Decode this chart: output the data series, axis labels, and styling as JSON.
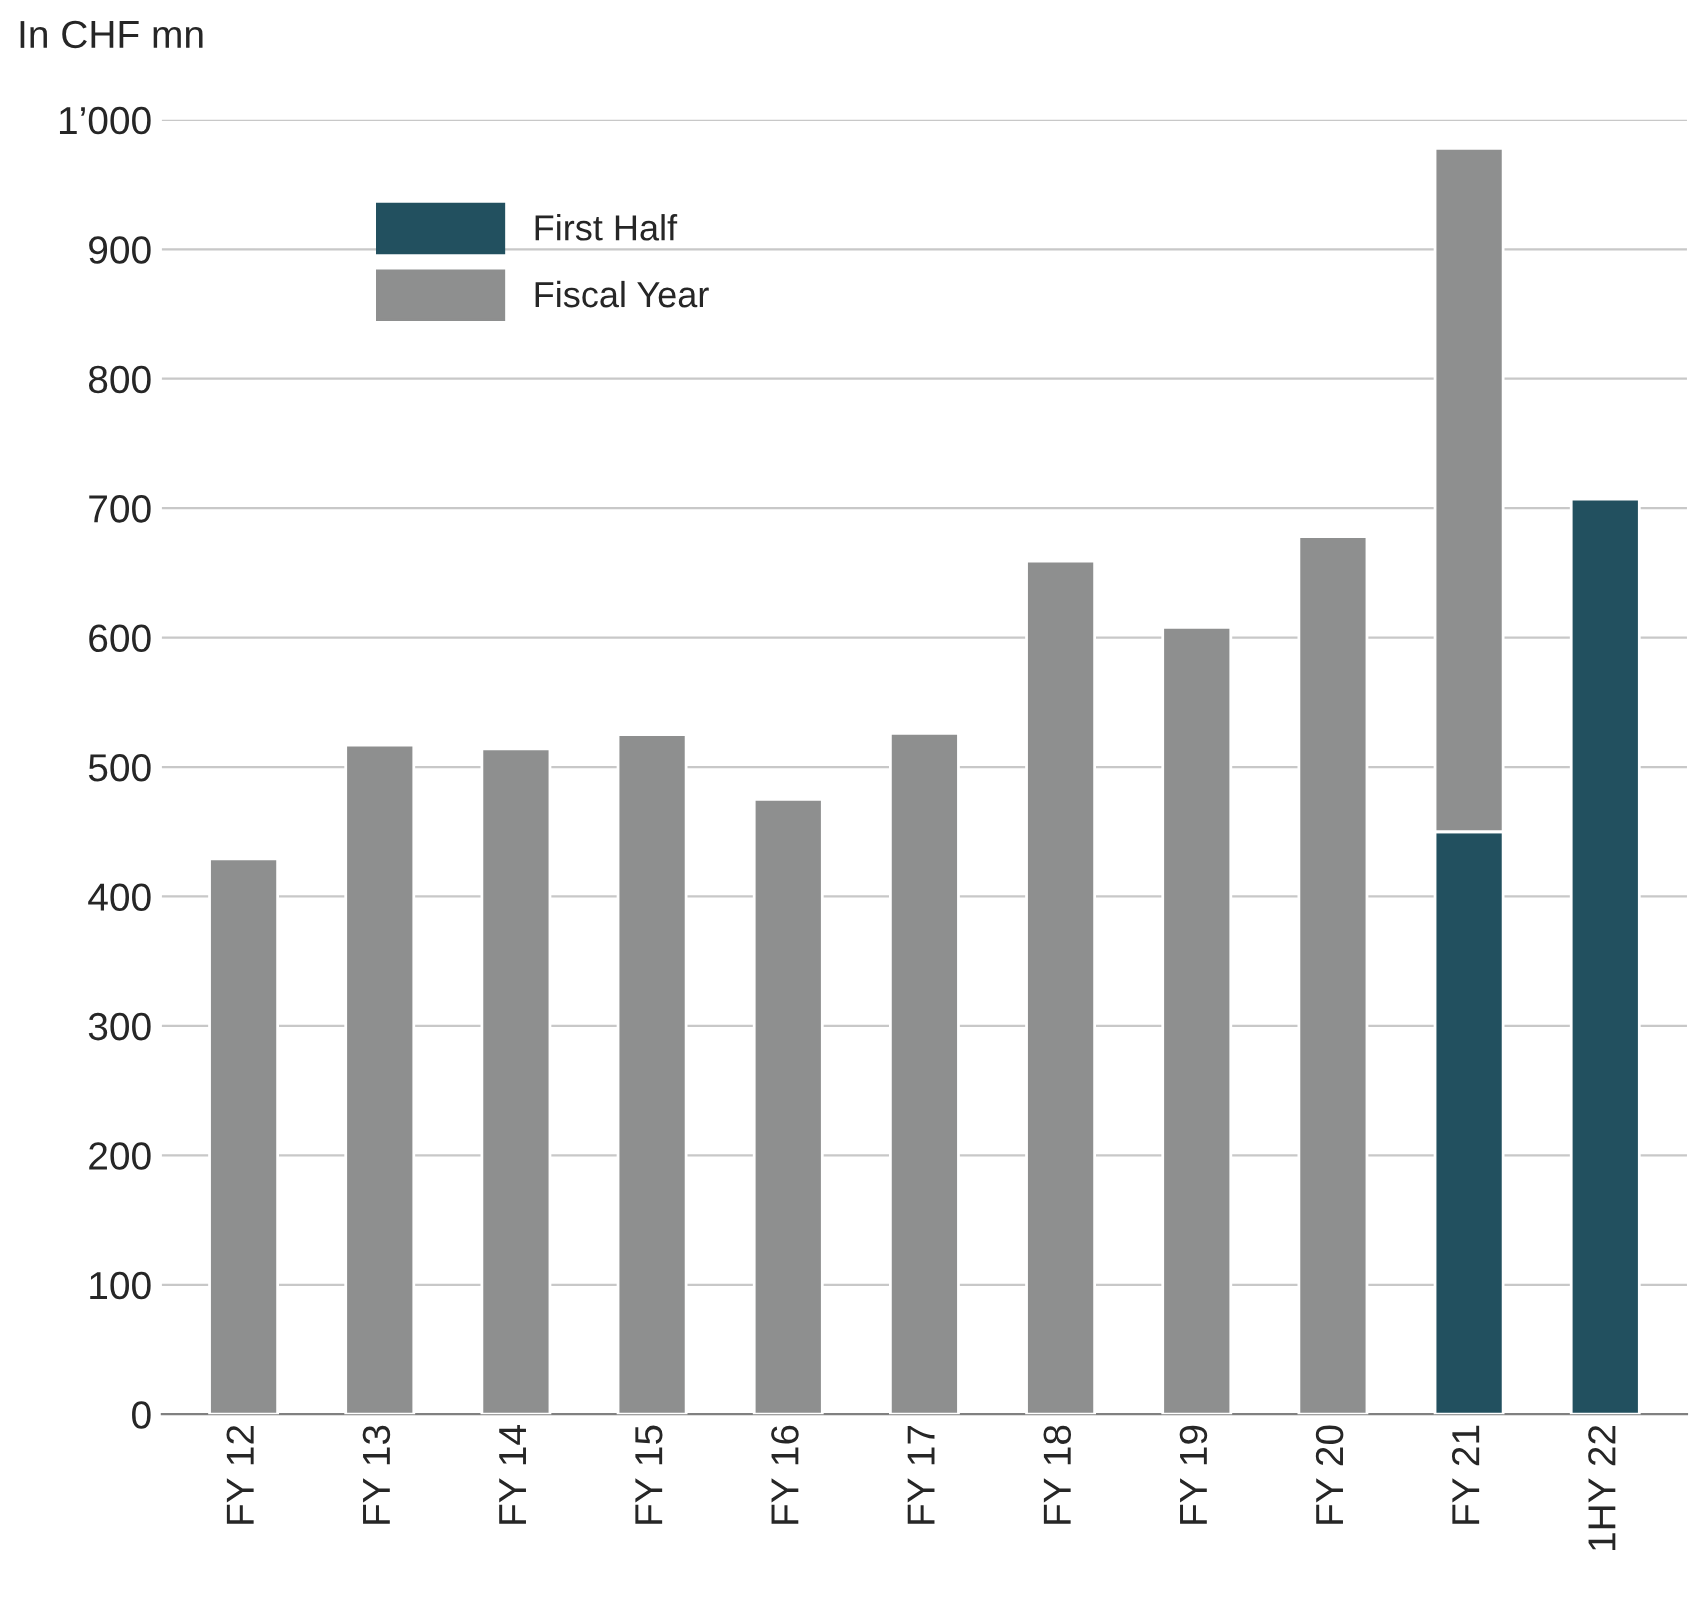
{
  "chart_data": {
    "type": "bar",
    "ylabel": "In CHF mn",
    "categories": [
      "FY 12",
      "FY 13",
      "FY 14",
      "FY 15",
      "FY 16",
      "FY 17",
      "FY 18",
      "FY 19",
      "FY 20",
      "FY 21",
      "1HY 22"
    ],
    "stacked": true,
    "series": [
      {
        "name": "First Half",
        "color": "#22505f",
        "values": [
          null,
          null,
          null,
          null,
          null,
          null,
          null,
          null,
          null,
          450,
          707
        ]
      },
      {
        "name": "Fiscal Year",
        "color": "#8e8f8f",
        "values": [
          429,
          517,
          514,
          525,
          475,
          526,
          659,
          608,
          678,
          528,
          null
        ]
      }
    ],
    "ylim": [
      0,
      1000
    ],
    "yticks": [
      0,
      100,
      200,
      300,
      400,
      500,
      600,
      700,
      800,
      900,
      {
        "value": 1000,
        "label": "1’000"
      }
    ],
    "grid": "y",
    "legend": "top left"
  }
}
